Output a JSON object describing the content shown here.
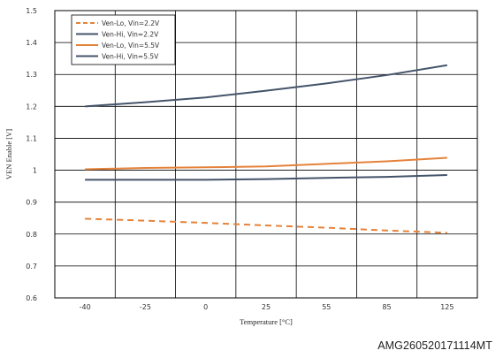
{
  "chart_data": {
    "type": "line",
    "title": "",
    "xlabel": "Temperature [°C]",
    "ylabel": "VEN Enable  [V]",
    "categories": [
      "-40",
      "-25",
      "0",
      "25",
      "55",
      "85",
      "125"
    ],
    "ylim": [
      0.6,
      1.5
    ],
    "yticks": [
      "0.6",
      "0.7",
      "0.8",
      "0.9",
      "1",
      "1.1",
      "1.2",
      "1.3",
      "1.4",
      "1.5"
    ],
    "grid": true,
    "legend_position": "top-left",
    "series": [
      {
        "name": "Ven-Lo, Vin=2.2V",
        "color": "#E5823A",
        "dashed": true,
        "values": [
          0.848,
          0.842,
          0.835,
          0.827,
          0.82,
          0.811,
          0.804
        ]
      },
      {
        "name": "Ven-Hi, Vin=2.2V",
        "color": "#44546A",
        "dashed": false,
        "values": [
          0.97,
          0.97,
          0.97,
          0.972,
          0.976,
          0.979,
          0.985
        ]
      },
      {
        "name": "Ven-Lo, Vin=5.5V",
        "color": "#E5823A",
        "dashed": false,
        "values": [
          1.003,
          1.007,
          1.009,
          1.012,
          1.02,
          1.028,
          1.039
        ]
      },
      {
        "name": "Ven-Hi, Vin=5.5V",
        "color": "#44546A",
        "dashed": false,
        "values": [
          1.2,
          1.213,
          1.228,
          1.249,
          1.272,
          1.298,
          1.329
        ]
      }
    ]
  },
  "footer": {
    "code": "AMG260520171114MT"
  }
}
